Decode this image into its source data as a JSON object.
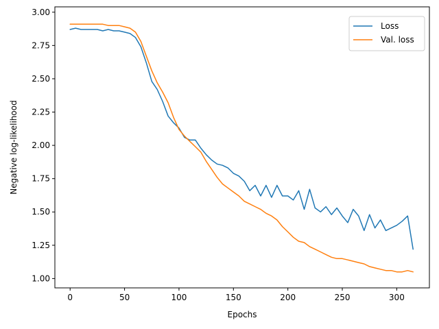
{
  "chart_data": {
    "type": "line",
    "title": "",
    "xlabel": "Epochs",
    "ylabel": "Negative log-likelihood",
    "xlim": [
      -14,
      330
    ],
    "ylim": [
      0.93,
      3.04
    ],
    "x_ticks": [
      0,
      50,
      100,
      150,
      200,
      250,
      300
    ],
    "x_tick_labels": [
      "0",
      "50",
      "100",
      "150",
      "200",
      "250",
      "300"
    ],
    "y_ticks": [
      1.0,
      1.25,
      1.5,
      1.75,
      2.0,
      2.25,
      2.5,
      2.75,
      3.0
    ],
    "y_tick_labels": [
      "1.00",
      "1.25",
      "1.50",
      "1.75",
      "2.00",
      "2.25",
      "2.50",
      "2.75",
      "3.00"
    ],
    "grid": false,
    "legend_position": "top-right",
    "series": [
      {
        "name": "Loss",
        "color": "#1f77b4",
        "x": [
          0,
          5,
          10,
          15,
          20,
          25,
          30,
          35,
          40,
          45,
          50,
          55,
          60,
          65,
          70,
          75,
          80,
          85,
          90,
          95,
          100,
          105,
          110,
          115,
          120,
          125,
          130,
          135,
          140,
          145,
          150,
          155,
          160,
          165,
          170,
          175,
          180,
          185,
          190,
          195,
          200,
          205,
          210,
          215,
          220,
          225,
          230,
          235,
          240,
          245,
          250,
          255,
          260,
          265,
          270,
          275,
          280,
          285,
          290,
          295,
          300,
          305,
          310,
          315
        ],
        "y": [
          2.87,
          2.88,
          2.87,
          2.87,
          2.87,
          2.87,
          2.86,
          2.87,
          2.86,
          2.86,
          2.85,
          2.84,
          2.81,
          2.74,
          2.62,
          2.48,
          2.42,
          2.33,
          2.22,
          2.17,
          2.13,
          2.06,
          2.04,
          2.04,
          1.98,
          1.93,
          1.89,
          1.86,
          1.85,
          1.83,
          1.79,
          1.77,
          1.73,
          1.66,
          1.7,
          1.62,
          1.7,
          1.61,
          1.7,
          1.62,
          1.62,
          1.59,
          1.66,
          1.52,
          1.67,
          1.53,
          1.5,
          1.54,
          1.48,
          1.53,
          1.47,
          1.42,
          1.52,
          1.47,
          1.36,
          1.48,
          1.38,
          1.44,
          1.36,
          1.38,
          1.4,
          1.43,
          1.47,
          1.22
        ]
      },
      {
        "name": "Val. loss",
        "color": "#ff7f0e",
        "x": [
          0,
          5,
          10,
          15,
          20,
          25,
          30,
          35,
          40,
          45,
          50,
          55,
          60,
          65,
          70,
          75,
          80,
          85,
          90,
          95,
          100,
          105,
          110,
          115,
          120,
          125,
          130,
          135,
          140,
          145,
          150,
          155,
          160,
          165,
          170,
          175,
          180,
          185,
          190,
          195,
          200,
          205,
          210,
          215,
          220,
          225,
          230,
          235,
          240,
          245,
          250,
          255,
          260,
          265,
          270,
          275,
          280,
          285,
          290,
          295,
          300,
          305,
          310,
          315
        ],
        "y": [
          2.91,
          2.91,
          2.91,
          2.91,
          2.91,
          2.91,
          2.91,
          2.9,
          2.9,
          2.9,
          2.89,
          2.88,
          2.85,
          2.78,
          2.67,
          2.56,
          2.47,
          2.4,
          2.32,
          2.21,
          2.12,
          2.07,
          2.03,
          1.99,
          1.95,
          1.88,
          1.82,
          1.76,
          1.71,
          1.68,
          1.65,
          1.62,
          1.58,
          1.56,
          1.54,
          1.52,
          1.49,
          1.47,
          1.44,
          1.39,
          1.35,
          1.31,
          1.28,
          1.27,
          1.24,
          1.22,
          1.2,
          1.18,
          1.16,
          1.15,
          1.15,
          1.14,
          1.13,
          1.12,
          1.11,
          1.09,
          1.08,
          1.07,
          1.06,
          1.06,
          1.05,
          1.05,
          1.06,
          1.05
        ]
      }
    ]
  }
}
